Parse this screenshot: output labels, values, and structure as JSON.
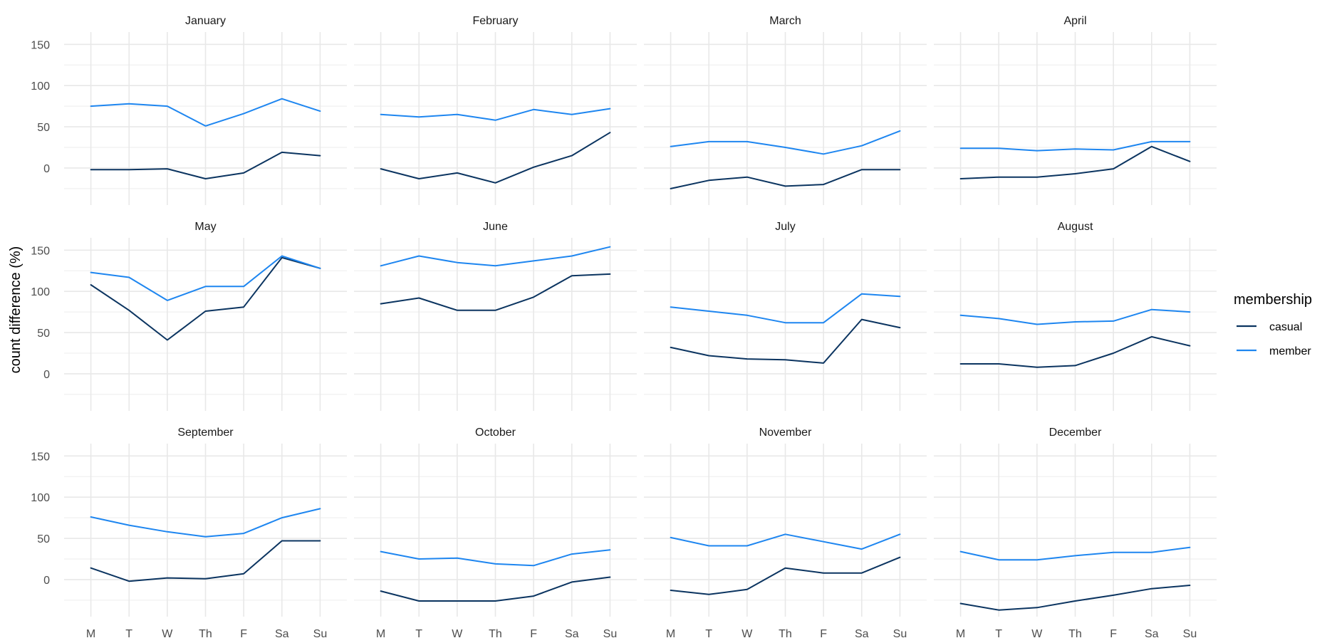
{
  "chart_data": {
    "type": "line",
    "ylabel": "count difference (%)",
    "xlabel": "",
    "categories": [
      "M",
      "T",
      "W",
      "Th",
      "F",
      "Sa",
      "Su"
    ],
    "y_ticks": [
      0,
      50,
      100,
      150
    ],
    "ylim": [
      -45,
      165
    ],
    "grid": true,
    "legend": {
      "title": "membership",
      "placement": "right",
      "entries": [
        {
          "name": "casual",
          "color": "#0b3460"
        },
        {
          "name": "member",
          "color": "#1e86f0"
        }
      ]
    },
    "panels": [
      {
        "title": "January",
        "series": [
          {
            "name": "casual",
            "values": [
              -2,
              -2,
              -1,
              -13,
              -6,
              19,
              15
            ]
          },
          {
            "name": "member",
            "values": [
              75,
              78,
              75,
              51,
              66,
              84,
              69
            ]
          }
        ]
      },
      {
        "title": "February",
        "series": [
          {
            "name": "casual",
            "values": [
              -1,
              -13,
              -6,
              -18,
              1,
              15,
              43
            ]
          },
          {
            "name": "member",
            "values": [
              65,
              62,
              65,
              58,
              71,
              65,
              72
            ]
          }
        ]
      },
      {
        "title": "March",
        "series": [
          {
            "name": "casual",
            "values": [
              -25,
              -15,
              -11,
              -22,
              -20,
              -2,
              -2
            ]
          },
          {
            "name": "member",
            "values": [
              26,
              32,
              32,
              25,
              17,
              27,
              45
            ]
          }
        ]
      },
      {
        "title": "April",
        "series": [
          {
            "name": "casual",
            "values": [
              -13,
              -11,
              -11,
              -7,
              -1,
              26,
              8
            ]
          },
          {
            "name": "member",
            "values": [
              24,
              24,
              21,
              23,
              22,
              32,
              32
            ]
          }
        ]
      },
      {
        "title": "May",
        "series": [
          {
            "name": "casual",
            "values": [
              108,
              77,
              41,
              76,
              81,
              141,
              128
            ]
          },
          {
            "name": "member",
            "values": [
              123,
              117,
              89,
              106,
              106,
              143,
              128
            ]
          }
        ]
      },
      {
        "title": "June",
        "series": [
          {
            "name": "casual",
            "values": [
              85,
              92,
              77,
              77,
              93,
              119,
              121
            ]
          },
          {
            "name": "member",
            "values": [
              131,
              143,
              135,
              131,
              137,
              143,
              154
            ]
          }
        ]
      },
      {
        "title": "July",
        "series": [
          {
            "name": "casual",
            "values": [
              32,
              22,
              18,
              17,
              13,
              66,
              56
            ]
          },
          {
            "name": "member",
            "values": [
              81,
              76,
              71,
              62,
              62,
              97,
              94
            ]
          }
        ]
      },
      {
        "title": "August",
        "series": [
          {
            "name": "casual",
            "values": [
              12,
              12,
              8,
              10,
              25,
              45,
              34
            ]
          },
          {
            "name": "member",
            "values": [
              71,
              67,
              60,
              63,
              64,
              78,
              75
            ]
          }
        ]
      },
      {
        "title": "September",
        "series": [
          {
            "name": "casual",
            "values": [
              14,
              -2,
              2,
              1,
              7,
              47,
              47
            ]
          },
          {
            "name": "member",
            "values": [
              76,
              66,
              58,
              52,
              56,
              75,
              86
            ]
          }
        ]
      },
      {
        "title": "October",
        "series": [
          {
            "name": "casual",
            "values": [
              -14,
              -26,
              -26,
              -26,
              -20,
              -3,
              3
            ]
          },
          {
            "name": "member",
            "values": [
              34,
              25,
              26,
              19,
              17,
              31,
              36
            ]
          }
        ]
      },
      {
        "title": "November",
        "series": [
          {
            "name": "casual",
            "values": [
              -13,
              -18,
              -12,
              14,
              8,
              8,
              27
            ]
          },
          {
            "name": "member",
            "values": [
              51,
              41,
              41,
              55,
              46,
              37,
              55
            ]
          }
        ]
      },
      {
        "title": "December",
        "series": [
          {
            "name": "casual",
            "values": [
              -29,
              -37,
              -34,
              -26,
              -19,
              -11,
              -7
            ]
          },
          {
            "name": "member",
            "values": [
              34,
              24,
              24,
              29,
              33,
              33,
              39
            ]
          }
        ]
      }
    ]
  }
}
